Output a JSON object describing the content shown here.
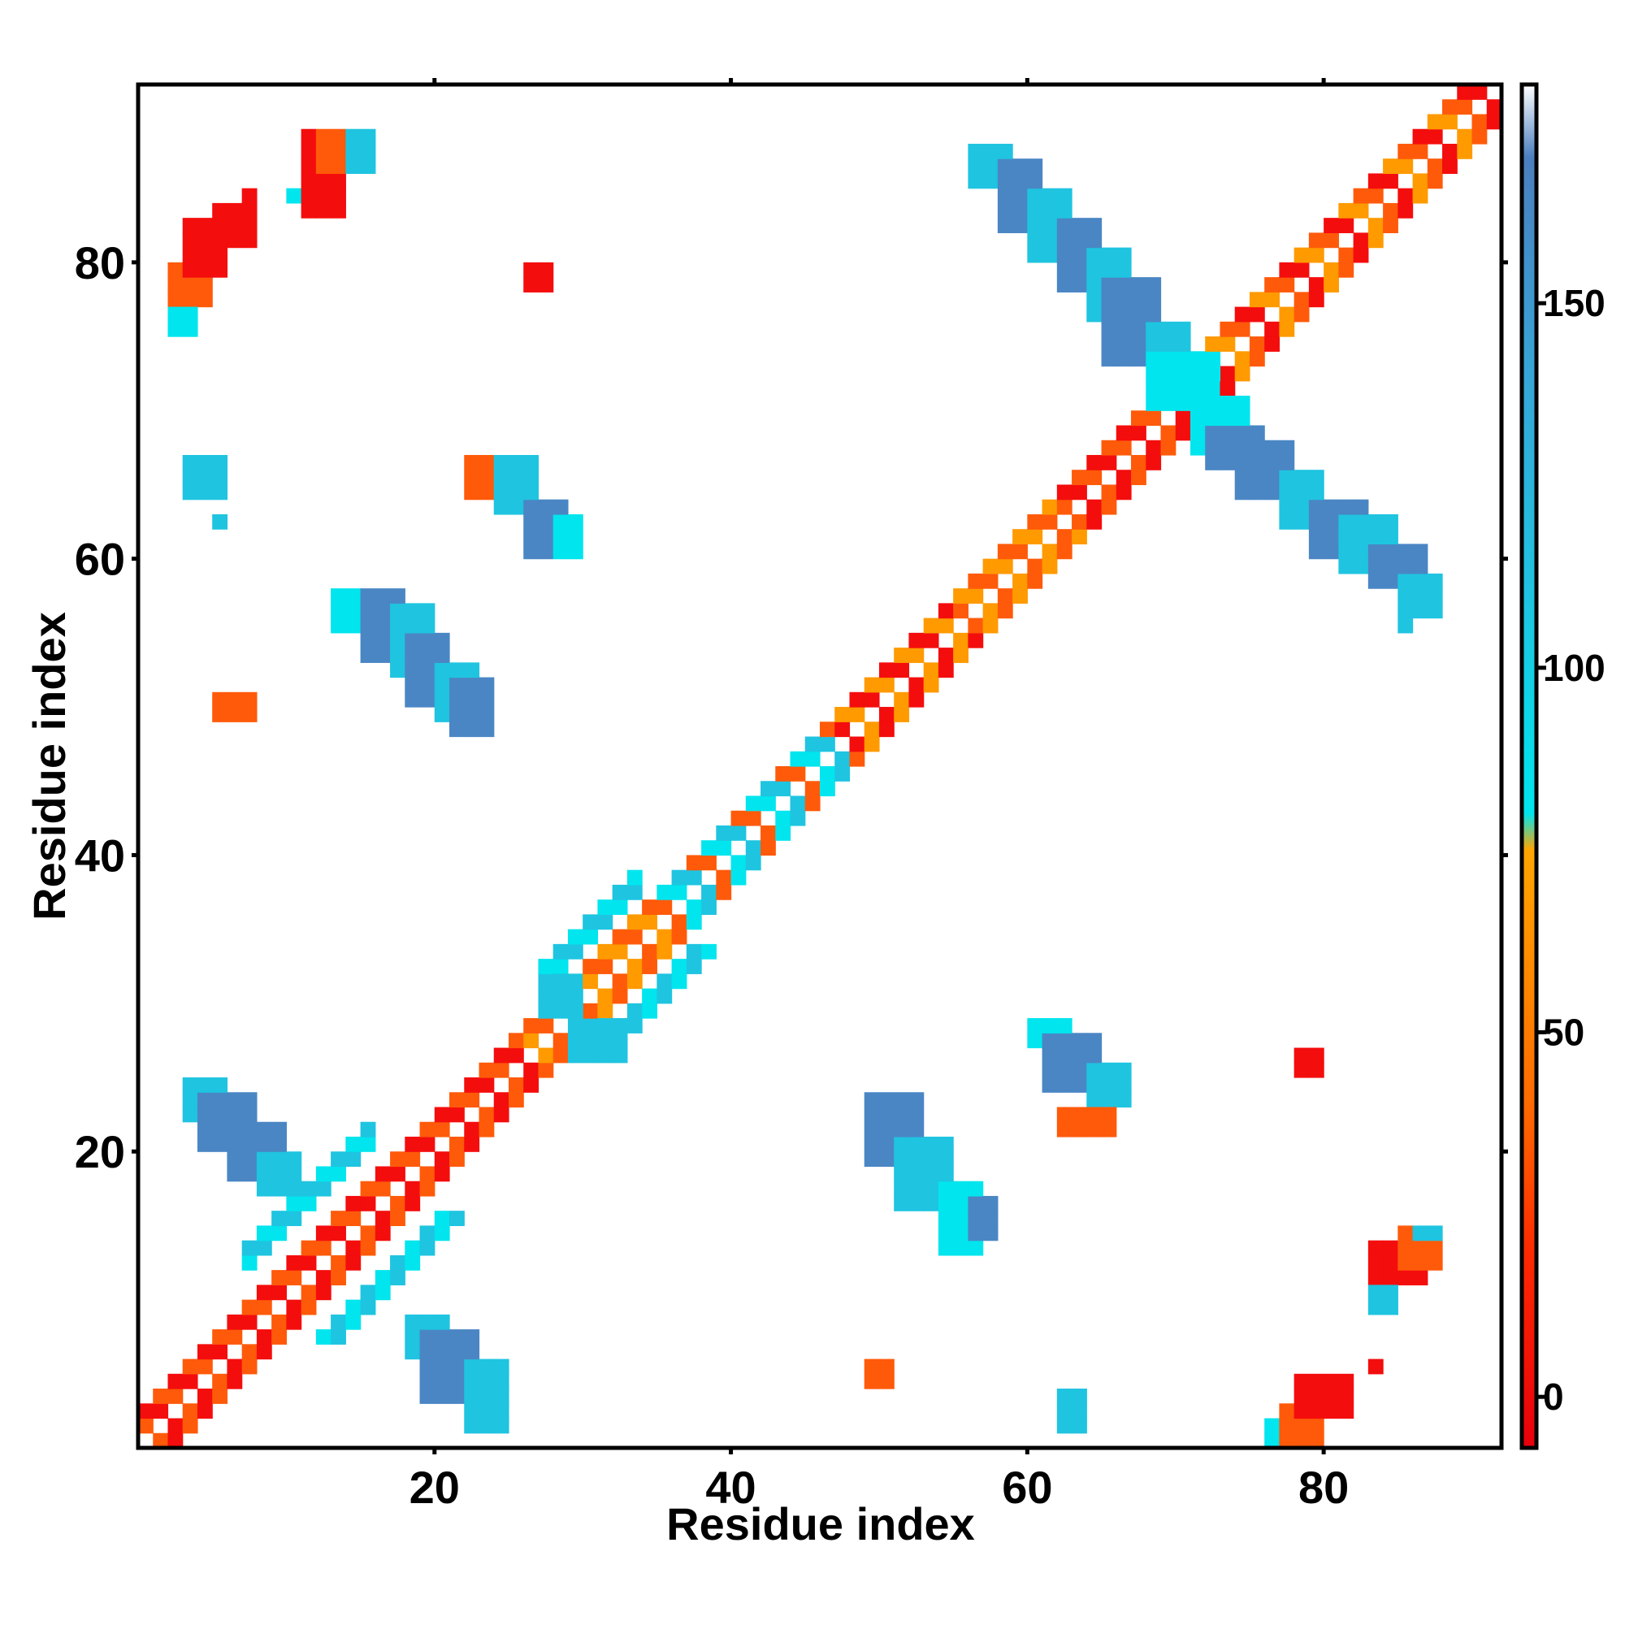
{
  "chart_data": {
    "type": "heatmap",
    "title": "",
    "xlabel": "Residue index",
    "ylabel": "Residue index",
    "xlim": [
      0,
      92
    ],
    "ylim": [
      0,
      92
    ],
    "x_ticks": [
      20,
      40,
      60,
      80
    ],
    "y_ticks": [
      20,
      40,
      60,
      80
    ],
    "colorbar": {
      "ticks": [
        0,
        50,
        100,
        150
      ],
      "range": [
        -7,
        180
      ],
      "stops": [
        {
          "value": -7,
          "color": "#e8000b"
        },
        {
          "value": 20,
          "color": "#ff2a00"
        },
        {
          "value": 40,
          "color": "#ff6a00"
        },
        {
          "value": 60,
          "color": "#ff8c00"
        },
        {
          "value": 75,
          "color": "#ffa500"
        },
        {
          "value": 80,
          "color": "#00e5ee"
        },
        {
          "value": 110,
          "color": "#1fc4e0"
        },
        {
          "value": 140,
          "color": "#36a6d8"
        },
        {
          "value": 170,
          "color": "#4b7fbf"
        },
        {
          "value": 180,
          "color": "#ffffff"
        }
      ]
    },
    "color_classes": {
      "r": "#f40d0d",
      "o": "#ff5a0a",
      "y": "#ff9a00",
      "c": "#00e5ee",
      "t": "#1fc4e0",
      "b": "#4a86c4"
    },
    "diagonal": {
      "start": 1,
      "end": 92,
      "pattern": "alternating near-diagonal contacts, colour by segment"
    },
    "diagonal_segments": [
      {
        "from": 1,
        "to": 16,
        "colors": [
          "r",
          "o"
        ]
      },
      {
        "from": 8,
        "to": 16,
        "colors": [
          "c",
          "t"
        ],
        "offsets": [
          5,
          6
        ]
      },
      {
        "from": 16,
        "to": 27,
        "colors": [
          "r",
          "o"
        ]
      },
      {
        "from": 27,
        "to": 38,
        "colors": [
          "o",
          "y"
        ]
      },
      {
        "from": 28,
        "to": 34,
        "colors": [
          "t",
          "c"
        ],
        "offsets": [
          4,
          5
        ]
      },
      {
        "from": 36,
        "to": 48,
        "colors": [
          "o",
          "c",
          "t"
        ]
      },
      {
        "from": 48,
        "to": 56,
        "colors": [
          "r",
          "y"
        ]
      },
      {
        "from": 56,
        "to": 63,
        "colors": [
          "o",
          "y"
        ]
      },
      {
        "from": 63,
        "to": 72,
        "colors": [
          "r",
          "o"
        ]
      },
      {
        "from": 72,
        "to": 92,
        "colors": [
          "o",
          "r",
          "y"
        ]
      }
    ],
    "blocks": [
      {
        "x": [
          3,
          5
        ],
        "y": [
          78,
          80
        ],
        "color": "o"
      },
      {
        "x": [
          4,
          6
        ],
        "y": [
          80,
          83
        ],
        "color": "r"
      },
      {
        "x": [
          6,
          8
        ],
        "y": [
          82,
          84
        ],
        "color": "r"
      },
      {
        "x": [
          3,
          4
        ],
        "y": [
          76,
          77
        ],
        "color": "c"
      },
      {
        "x": [
          8,
          8
        ],
        "y": [
          85,
          85
        ],
        "color": "r"
      },
      {
        "x": [
          11,
          11
        ],
        "y": [
          85,
          85
        ],
        "color": "c"
      },
      {
        "x": [
          12,
          14
        ],
        "y": [
          84,
          89
        ],
        "color": "r"
      },
      {
        "x": [
          13,
          15
        ],
        "y": [
          87,
          89
        ],
        "color": "o"
      },
      {
        "x": [
          15,
          16
        ],
        "y": [
          87,
          89
        ],
        "color": "t"
      },
      {
        "x": [
          27,
          28
        ],
        "y": [
          79,
          80
        ],
        "color": "r"
      },
      {
        "x": [
          4,
          6
        ],
        "y": [
          65,
          67
        ],
        "color": "t"
      },
      {
        "x": [
          6,
          6
        ],
        "y": [
          63,
          63
        ],
        "color": "t"
      },
      {
        "x": [
          6,
          8
        ],
        "y": [
          50,
          51
        ],
        "color": "o"
      },
      {
        "x": [
          23,
          25
        ],
        "y": [
          65,
          67
        ],
        "color": "o"
      },
      {
        "x": [
          25,
          27
        ],
        "y": [
          64,
          67
        ],
        "color": "t"
      },
      {
        "x": [
          27,
          29
        ],
        "y": [
          61,
          64
        ],
        "color": "b"
      },
      {
        "x": [
          29,
          30
        ],
        "y": [
          61,
          63
        ],
        "color": "c"
      },
      {
        "x": [
          14,
          16
        ],
        "y": [
          56,
          58
        ],
        "color": "c"
      },
      {
        "x": [
          16,
          18
        ],
        "y": [
          54,
          58
        ],
        "color": "b"
      },
      {
        "x": [
          18,
          20
        ],
        "y": [
          53,
          57
        ],
        "color": "t"
      },
      {
        "x": [
          19,
          21
        ],
        "y": [
          51,
          55
        ],
        "color": "b"
      },
      {
        "x": [
          21,
          23
        ],
        "y": [
          50,
          53
        ],
        "color": "t"
      },
      {
        "x": [
          22,
          24
        ],
        "y": [
          49,
          52
        ],
        "color": "b"
      },
      {
        "x": [
          4,
          6
        ],
        "y": [
          23,
          25
        ],
        "color": "t"
      },
      {
        "x": [
          5,
          8
        ],
        "y": [
          21,
          24
        ],
        "color": "b"
      },
      {
        "x": [
          7,
          10
        ],
        "y": [
          19,
          22
        ],
        "color": "b"
      },
      {
        "x": [
          9,
          11
        ],
        "y": [
          18,
          20
        ],
        "color": "t"
      },
      {
        "x": [
          19,
          21
        ],
        "y": [
          7,
          9
        ],
        "color": "t"
      },
      {
        "x": [
          20,
          23
        ],
        "y": [
          4,
          8
        ],
        "color": "b"
      },
      {
        "x": [
          23,
          25
        ],
        "y": [
          2,
          6
        ],
        "color": "t"
      },
      {
        "x": [
          28,
          30
        ],
        "y": [
          30,
          32
        ],
        "color": "t"
      },
      {
        "x": [
          30,
          33
        ],
        "y": [
          27,
          29
        ],
        "color": "t"
      },
      {
        "x": [
          50,
          53
        ],
        "y": [
          20,
          24
        ],
        "color": "b"
      },
      {
        "x": [
          52,
          55
        ],
        "y": [
          17,
          21
        ],
        "color": "t"
      },
      {
        "x": [
          55,
          57
        ],
        "y": [
          14,
          18
        ],
        "color": "c"
      },
      {
        "x": [
          57,
          58
        ],
        "y": [
          15,
          17
        ],
        "color": "b"
      },
      {
        "x": [
          61,
          63
        ],
        "y": [
          28,
          29
        ],
        "color": "c"
      },
      {
        "x": [
          62,
          65
        ],
        "y": [
          25,
          28
        ],
        "color": "b"
      },
      {
        "x": [
          65,
          67
        ],
        "y": [
          24,
          26
        ],
        "color": "t"
      },
      {
        "x": [
          63,
          66
        ],
        "y": [
          22,
          23
        ],
        "color": "o"
      },
      {
        "x": [
          50,
          51
        ],
        "y": [
          5,
          6
        ],
        "color": "o"
      },
      {
        "x": [
          63,
          64
        ],
        "y": [
          2,
          4
        ],
        "color": "t"
      },
      {
        "x": [
          77,
          79
        ],
        "y": [
          1,
          2
        ],
        "color": "c"
      },
      {
        "x": [
          78,
          80
        ],
        "y": [
          1,
          3
        ],
        "color": "o"
      },
      {
        "x": [
          79,
          82
        ],
        "y": [
          3,
          5
        ],
        "color": "r"
      },
      {
        "x": [
          84,
          84
        ],
        "y": [
          6,
          6
        ],
        "color": "r"
      },
      {
        "x": [
          79,
          80
        ],
        "y": [
          26,
          27
        ],
        "color": "r"
      },
      {
        "x": [
          84,
          87
        ],
        "y": [
          12,
          14
        ],
        "color": "r"
      },
      {
        "x": [
          86,
          88
        ],
        "y": [
          13,
          15
        ],
        "color": "o"
      },
      {
        "x": [
          87,
          88
        ],
        "y": [
          15,
          15
        ],
        "color": "t"
      },
      {
        "x": [
          84,
          85
        ],
        "y": [
          10,
          11
        ],
        "color": "t"
      },
      {
        "x": [
          57,
          59
        ],
        "y": [
          86,
          88
        ],
        "color": "t"
      },
      {
        "x": [
          59,
          61
        ],
        "y": [
          83,
          87
        ],
        "color": "b"
      },
      {
        "x": [
          61,
          63
        ],
        "y": [
          81,
          85
        ],
        "color": "t"
      },
      {
        "x": [
          63,
          65
        ],
        "y": [
          79,
          83
        ],
        "color": "b"
      },
      {
        "x": [
          65,
          67
        ],
        "y": [
          77,
          81
        ],
        "color": "t"
      },
      {
        "x": [
          66,
          69
        ],
        "y": [
          74,
          79
        ],
        "color": "b"
      },
      {
        "x": [
          69,
          71
        ],
        "y": [
          73,
          76
        ],
        "color": "t"
      },
      {
        "x": [
          69,
          73
        ],
        "y": [
          71,
          74
        ],
        "color": "c"
      },
      {
        "x": [
          72,
          75
        ],
        "y": [
          68,
          71
        ],
        "color": "c"
      },
      {
        "x": [
          73,
          76
        ],
        "y": [
          67,
          69
        ],
        "color": "b"
      },
      {
        "x": [
          75,
          78
        ],
        "y": [
          65,
          68
        ],
        "color": "b"
      },
      {
        "x": [
          78,
          80
        ],
        "y": [
          63,
          66
        ],
        "color": "t"
      },
      {
        "x": [
          80,
          83
        ],
        "y": [
          61,
          64
        ],
        "color": "b"
      },
      {
        "x": [
          82,
          85
        ],
        "y": [
          60,
          63
        ],
        "color": "t"
      },
      {
        "x": [
          84,
          87
        ],
        "y": [
          59,
          61
        ],
        "color": "b"
      },
      {
        "x": [
          86,
          88
        ],
        "y": [
          57,
          59
        ],
        "color": "t"
      },
      {
        "x": [
          86,
          86
        ],
        "y": [
          56,
          56
        ],
        "color": "t"
      }
    ]
  }
}
